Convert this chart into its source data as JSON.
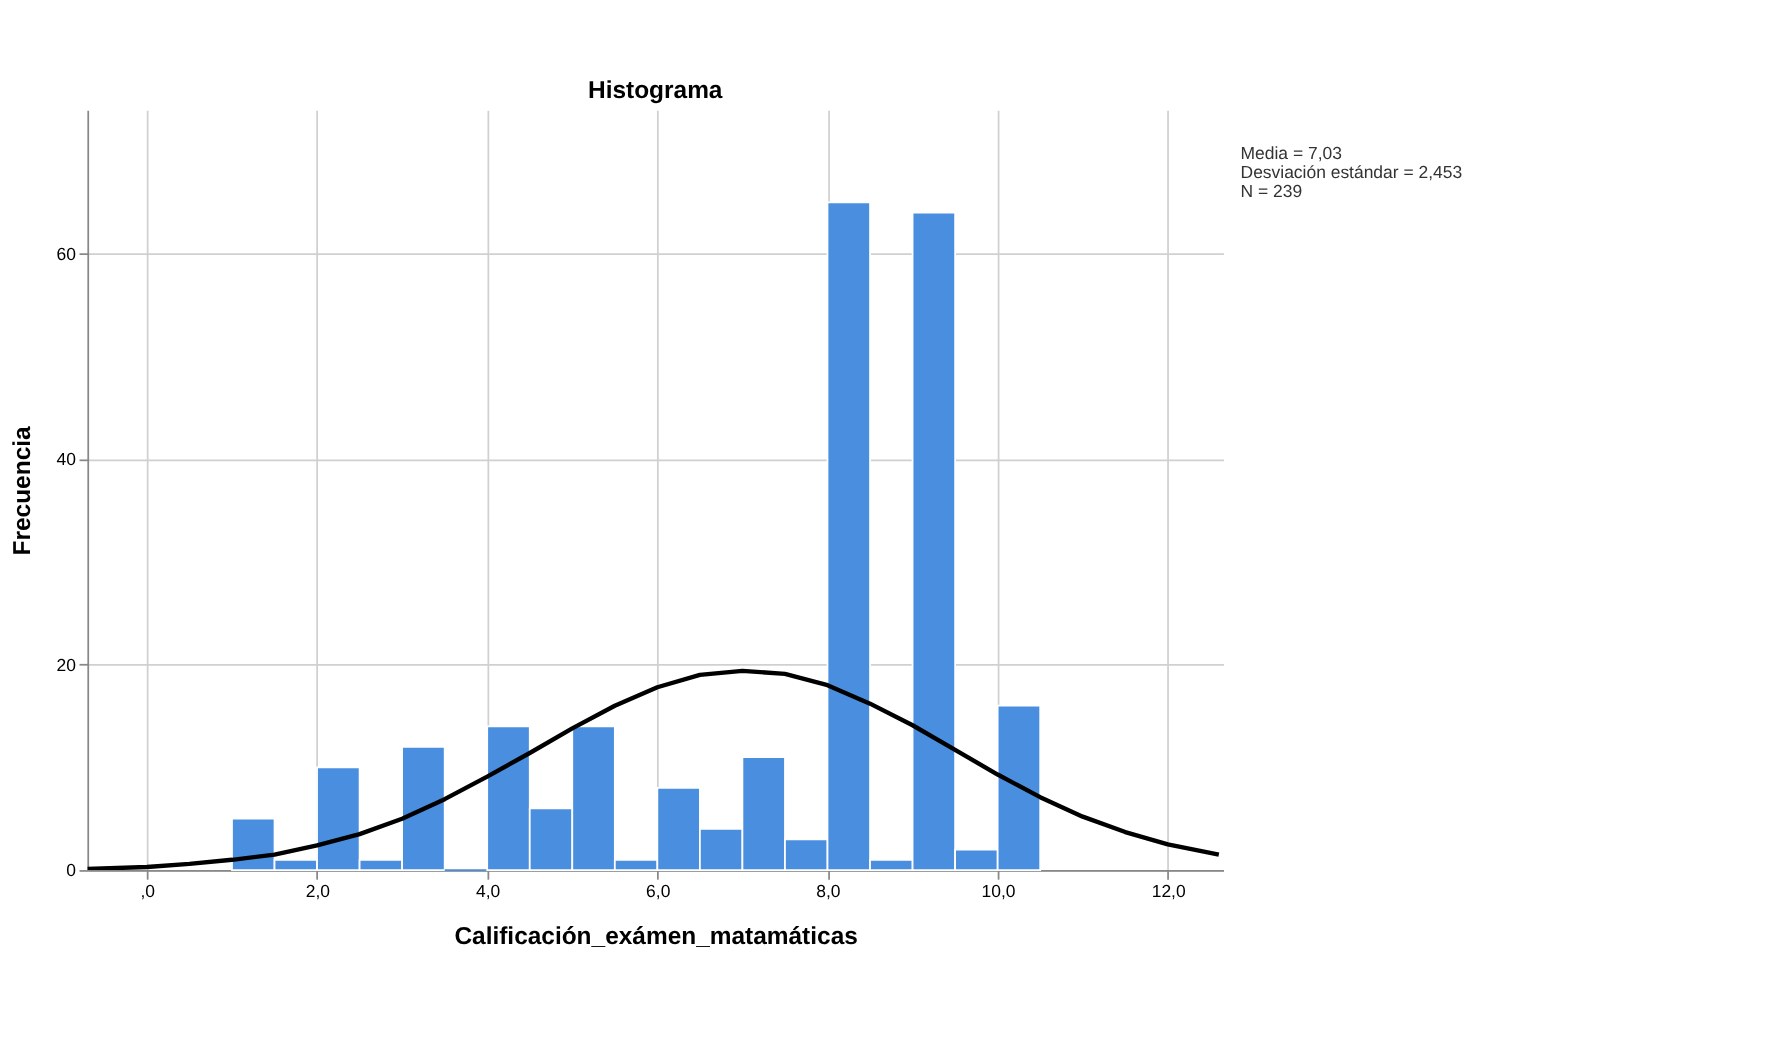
{
  "chart_data": {
    "type": "histogram",
    "title": "Histograma",
    "xlabel": "Calificación_exámen_matamáticas",
    "ylabel": "Frecuencia",
    "bins": [
      1.0,
      1.5,
      2.0,
      2.5,
      3.0,
      3.5,
      4.0,
      4.5,
      5.0,
      5.5,
      6.0,
      6.5,
      7.0,
      7.5,
      8.0,
      8.5,
      9.0,
      9.5,
      10.0,
      10.5
    ],
    "values": [
      5,
      1,
      10,
      1,
      12,
      0,
      14,
      6,
      14,
      1,
      8,
      4,
      11,
      3,
      65,
      1,
      64,
      2,
      16
    ],
    "color": "#4a8ee0",
    "series": [
      {
        "type": "line",
        "color": "#000000",
        "x": [
          -0.7,
          0,
          0.5,
          1,
          1.5,
          2,
          2.5,
          3,
          3.5,
          4,
          4.5,
          5,
          5.5,
          6,
          6.5,
          7,
          7.5,
          8,
          8.5,
          9,
          9.5,
          10,
          10.5,
          11,
          11.5,
          12,
          12.6
        ],
        "values": [
          0.1,
          0.3,
          0.6,
          1.0,
          1.5,
          2.4,
          3.5,
          5.0,
          6.9,
          9.1,
          11.4,
          13.8,
          16.0,
          17.8,
          19.0,
          19.4,
          19.1,
          18.0,
          16.2,
          14.1,
          11.7,
          9.3,
          7.1,
          5.2,
          3.7,
          2.5,
          1.5
        ]
      }
    ],
    "xlim": [
      -0.7,
      12.65
    ],
    "xticks": [
      {
        "value": 0,
        "label": ",0"
      },
      {
        "value": 2,
        "label": "2,0"
      },
      {
        "value": 4,
        "label": "4,0"
      },
      {
        "value": 6,
        "label": "6,0"
      },
      {
        "value": 8,
        "label": "8,0"
      },
      {
        "value": 10,
        "label": "10,0"
      },
      {
        "value": 12,
        "label": "12,0"
      }
    ],
    "ylim": [
      0,
      74
    ],
    "yticks": [
      0,
      20,
      40,
      60
    ],
    "grid": true,
    "annotations": [
      "Media = 7,03",
      "Desviación estándar = 2,453",
      "N = 239"
    ]
  }
}
